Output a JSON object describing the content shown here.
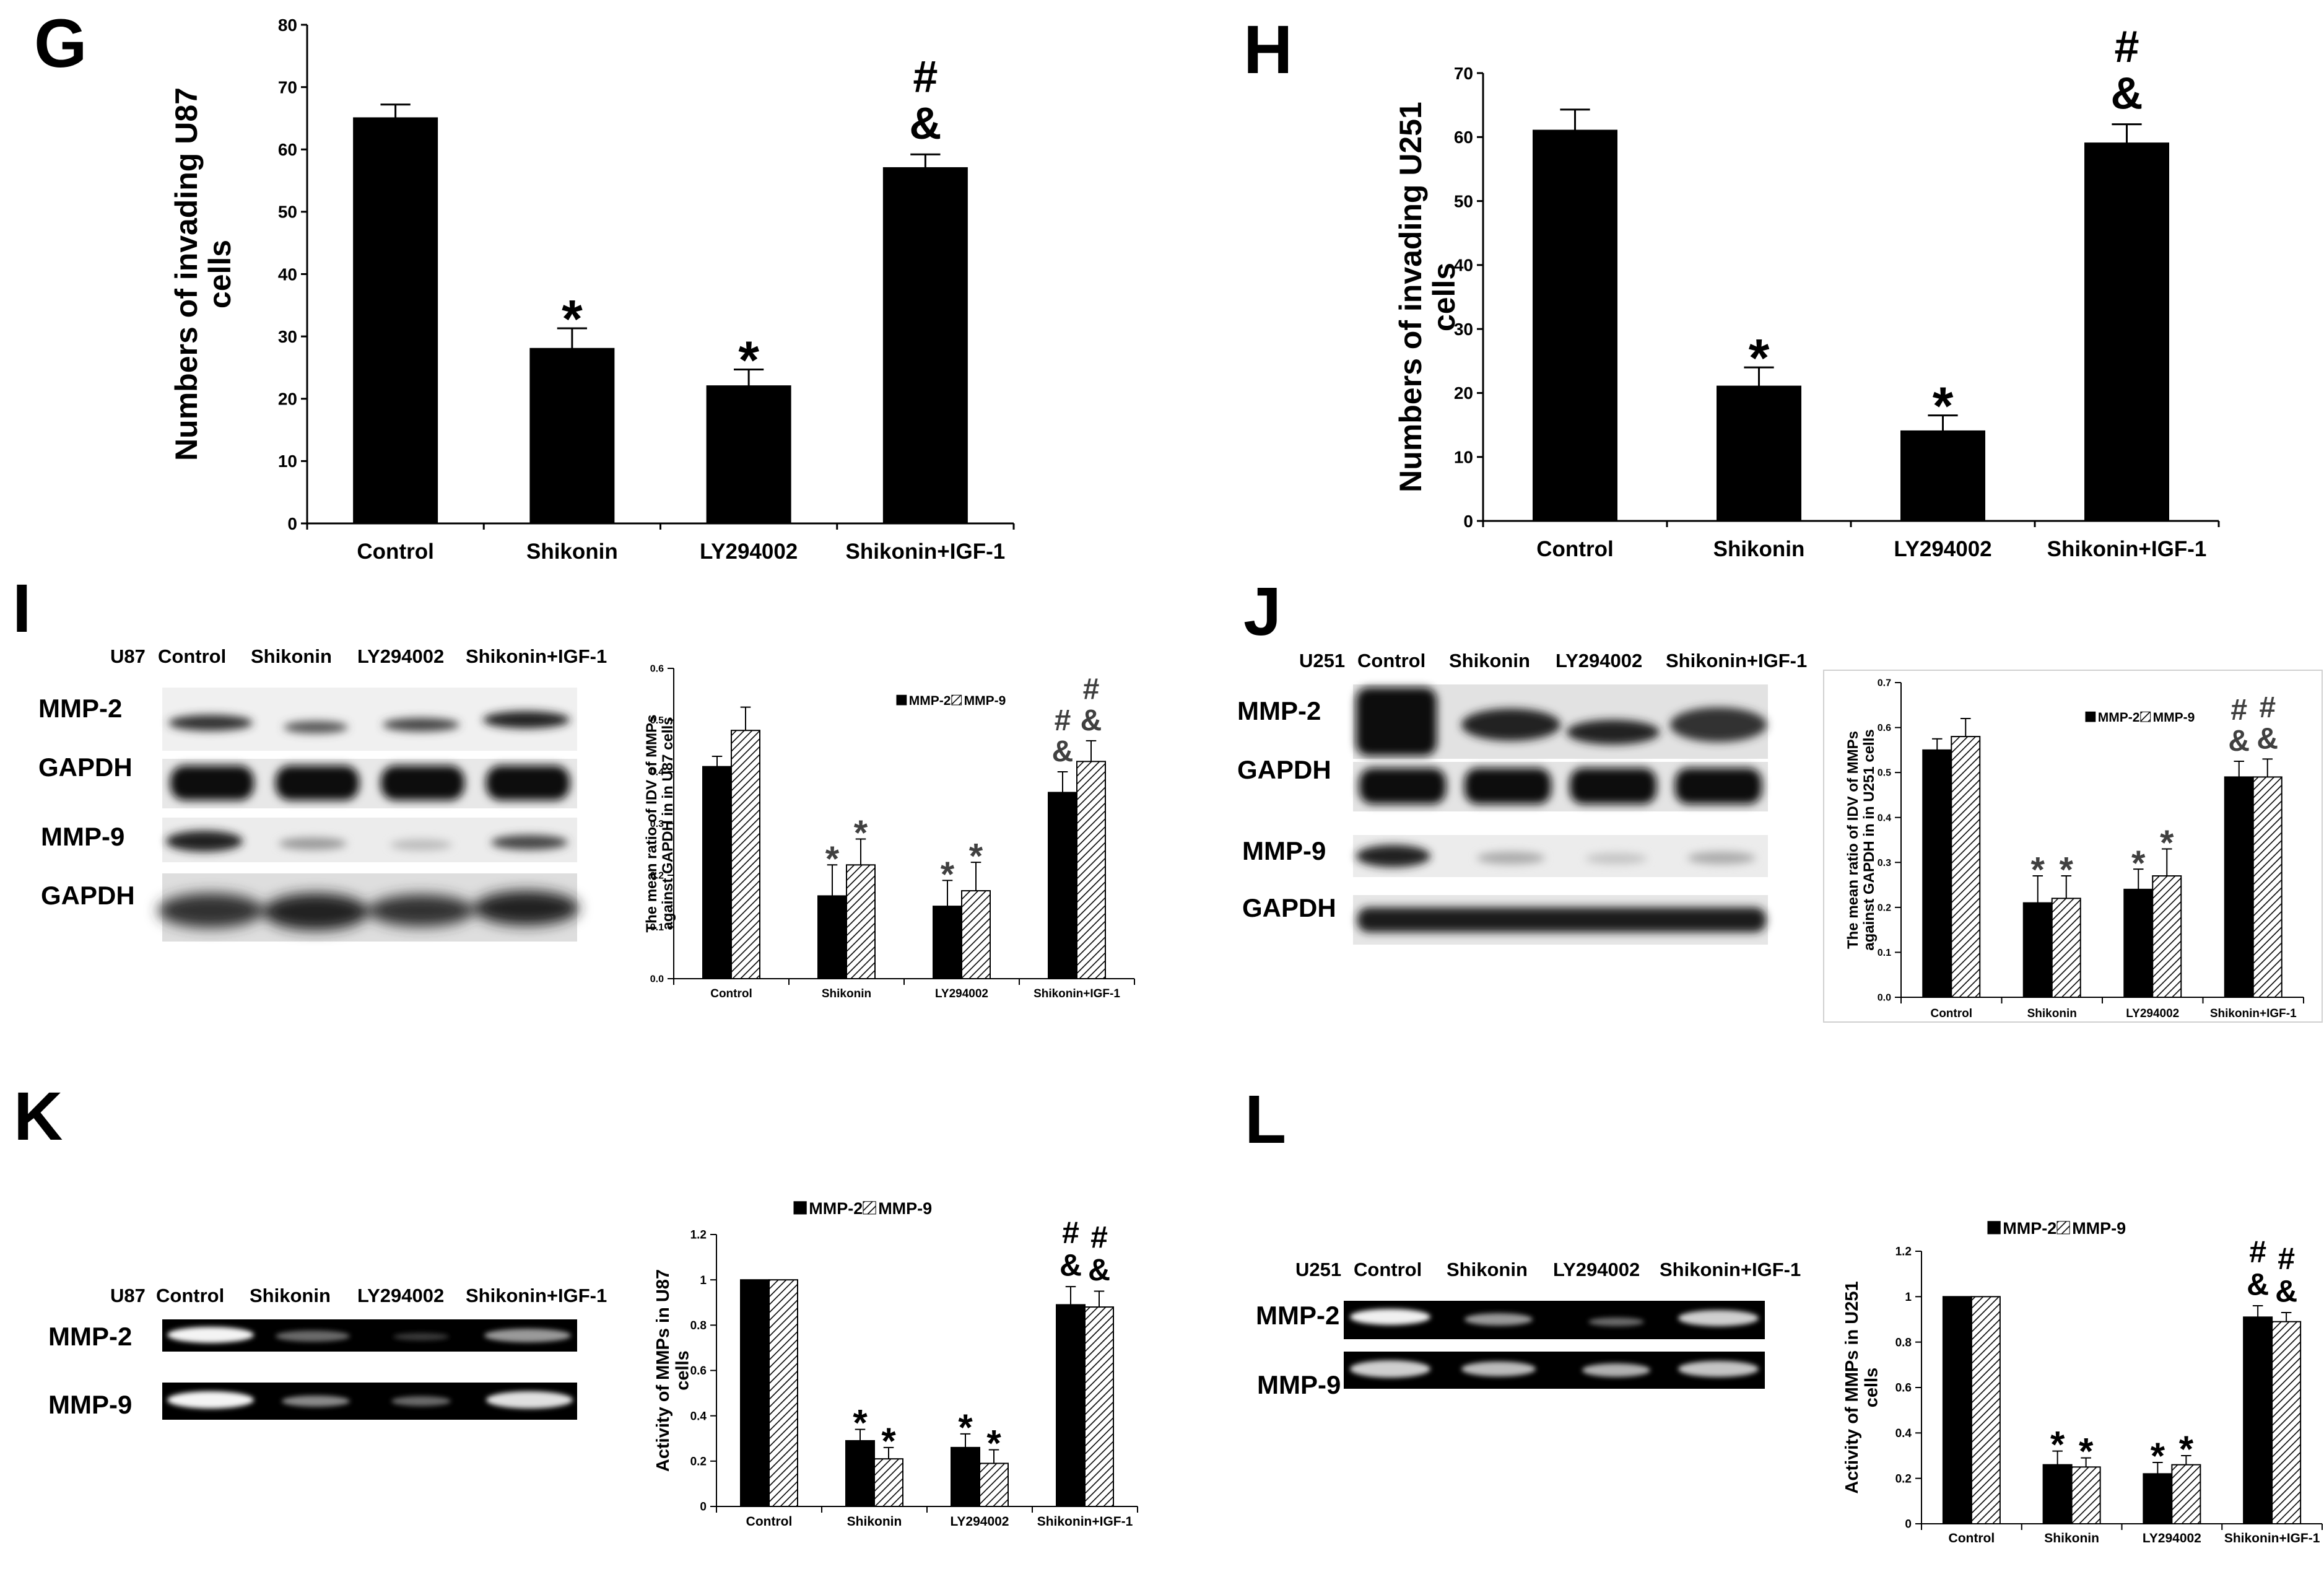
{
  "panels": {
    "G": {
      "letter": "G"
    },
    "H": {
      "letter": "H"
    },
    "I": {
      "letter": "I",
      "blot_header": [
        "U87",
        "Control",
        "Shikonin",
        "LY294002",
        "Shikonin+IGF-1"
      ],
      "blot_rows": [
        "MMP-2",
        "GAPDH",
        "MMP-9",
        "GAPDH"
      ]
    },
    "J": {
      "letter": "J",
      "blot_header": [
        "U251",
        "Control",
        "Shikonin",
        "LY294002",
        "Shikonin+IGF-1"
      ],
      "blot_rows": [
        "MMP-2",
        "GAPDH",
        "MMP-9",
        "GAPDH"
      ]
    },
    "K": {
      "letter": "K",
      "blot_header": [
        "U87",
        "Control",
        "Shikonin",
        "LY294002",
        "Shikonin+IGF-1"
      ],
      "blot_rows": [
        "MMP-2",
        "MMP-9"
      ]
    },
    "L": {
      "letter": "L",
      "blot_header": [
        "U251",
        "Control",
        "Shikonin",
        "LY294002",
        "Shikonin+IGF-1"
      ],
      "blot_rows": [
        "MMP-2",
        "MMP-9"
      ]
    }
  },
  "colors": {
    "bar": "#000000",
    "hatch": "#000000",
    "axis": "#000000"
  },
  "chart_data": [
    {
      "id": "G",
      "type": "bar",
      "categories": [
        "Control",
        "Shikonin",
        "LY294002",
        "Shikonin+IGF-1"
      ],
      "series": [
        {
          "values": [
            65,
            28,
            22,
            57
          ],
          "errors": [
            2.2,
            3.3,
            2.7,
            2.2
          ]
        }
      ],
      "ylabel_lines": [
        "Numbers of invading U87",
        "cells"
      ],
      "ylim": [
        0,
        80
      ],
      "yticks": [
        "0",
        "10",
        "20",
        "30",
        "40",
        "50",
        "60",
        "70",
        "80"
      ],
      "annotations": [
        [
          "",
          "*",
          "*",
          "#&"
        ]
      ]
    },
    {
      "id": "H",
      "type": "bar",
      "categories": [
        "Control",
        "Shikonin",
        "LY294002",
        "Shikonin+IGF-1"
      ],
      "series": [
        {
          "values": [
            61,
            21,
            14,
            59
          ],
          "errors": [
            3.3,
            3.0,
            2.5,
            3.0
          ]
        }
      ],
      "ylabel_lines": [
        "Numbers of invading U251",
        "cells"
      ],
      "ylim": [
        0,
        70
      ],
      "yticks": [
        "0",
        "10",
        "20",
        "30",
        "40",
        "50",
        "60",
        "70"
      ],
      "annotations": [
        [
          "",
          "*",
          "*",
          "#&"
        ]
      ]
    },
    {
      "id": "I",
      "type": "bar",
      "categories": [
        "Control",
        "Shikonin",
        "LY294002",
        "Shikonin+IGF-1"
      ],
      "series": [
        {
          "name": "MMP-2",
          "pattern": "solid",
          "values": [
            0.41,
            0.16,
            0.14,
            0.36
          ],
          "errors": [
            0.02,
            0.06,
            0.05,
            0.04
          ]
        },
        {
          "name": "MMP-9",
          "pattern": "hatch",
          "values": [
            0.48,
            0.22,
            0.17,
            0.42
          ],
          "errors": [
            0.045,
            0.05,
            0.055,
            0.04
          ]
        }
      ],
      "ylabel_lines": [
        "The mean ratio of IDV of MMPs",
        "against GAPDH in in U87 cells"
      ],
      "ylim": [
        0,
        0.6
      ],
      "yticks": [
        "0.0",
        "0.1",
        "0.2",
        "0.3",
        "0.4",
        "0.5",
        "0.6"
      ],
      "annotations": [
        [
          "",
          "*",
          "*",
          "#&"
        ],
        [
          "",
          "*",
          "*",
          "#&"
        ]
      ]
    },
    {
      "id": "J",
      "type": "bar",
      "categories": [
        "Control",
        "Shikonin",
        "LY294002",
        "Shikonin+IGF-1"
      ],
      "series": [
        {
          "name": "MMP-2",
          "pattern": "solid",
          "values": [
            0.55,
            0.21,
            0.24,
            0.49
          ],
          "errors": [
            0.025,
            0.06,
            0.045,
            0.035
          ]
        },
        {
          "name": "MMP-9",
          "pattern": "hatch",
          "values": [
            0.58,
            0.22,
            0.27,
            0.49
          ],
          "errors": [
            0.04,
            0.05,
            0.06,
            0.04
          ]
        }
      ],
      "ylabel_lines": [
        "The mean ratio of IDV of MMPs",
        "against GAPDH in in U251 cells"
      ],
      "ylim": [
        0,
        0.7
      ],
      "yticks": [
        "0.0",
        "0.1",
        "0.2",
        "0.3",
        "0.4",
        "0.5",
        "0.6",
        "0.7"
      ],
      "annotations": [
        [
          "",
          "*",
          "*",
          "#&"
        ],
        [
          "",
          "*",
          "*",
          "#&"
        ]
      ]
    },
    {
      "id": "K",
      "type": "bar",
      "categories": [
        "Control",
        "Shikonin",
        "LY294002",
        "Shikonin+IGF-1"
      ],
      "series": [
        {
          "name": "MMP-2",
          "pattern": "solid",
          "values": [
            1.0,
            0.29,
            0.26,
            0.89
          ],
          "errors": [
            0,
            0.05,
            0.06,
            0.08
          ]
        },
        {
          "name": "MMP-9",
          "pattern": "hatch",
          "values": [
            1.0,
            0.21,
            0.19,
            0.88
          ],
          "errors": [
            0,
            0.05,
            0.06,
            0.07
          ]
        }
      ],
      "ylabel_lines": [
        "Activity of MMPs  in U87",
        "cells"
      ],
      "ylim": [
        0,
        1.2
      ],
      "yticks": [
        "0",
        "0.2",
        "0.4",
        "0.6",
        "0.8",
        "1",
        "1.2"
      ],
      "annotations": [
        [
          "",
          "*",
          "*",
          "#&"
        ],
        [
          "",
          "*",
          "*",
          "#&"
        ]
      ]
    },
    {
      "id": "L",
      "type": "bar",
      "categories": [
        "Control",
        "Shikonin",
        "LY294002",
        "Shikonin+IGF-1"
      ],
      "series": [
        {
          "name": "MMP-2",
          "pattern": "solid",
          "values": [
            1.0,
            0.26,
            0.22,
            0.91
          ],
          "errors": [
            0,
            0.06,
            0.05,
            0.05
          ]
        },
        {
          "name": "MMP-9",
          "pattern": "hatch",
          "values": [
            1.0,
            0.25,
            0.26,
            0.89
          ],
          "errors": [
            0,
            0.04,
            0.04,
            0.04
          ]
        }
      ],
      "ylabel_lines": [
        "Activity of MMPs  in U251",
        "cells"
      ],
      "ylim": [
        0,
        1.2
      ],
      "yticks": [
        "0",
        "0.2",
        "0.4",
        "0.6",
        "0.8",
        "1",
        "1.2"
      ],
      "annotations": [
        [
          "",
          "*",
          "*",
          "#&"
        ],
        [
          "",
          "*",
          "*",
          "#&"
        ]
      ]
    }
  ]
}
